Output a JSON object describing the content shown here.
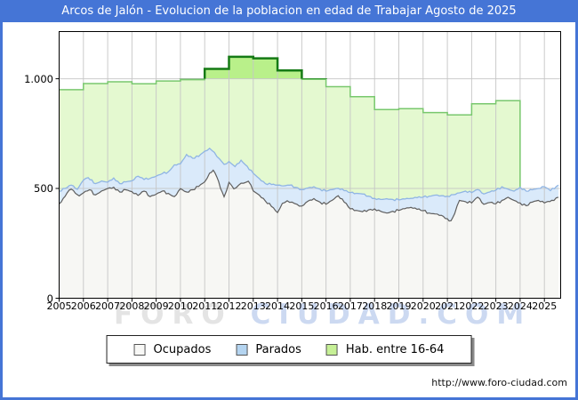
{
  "header": {
    "title": "Arcos de Jalón - Evolucion de la poblacion en edad de Trabajar Agosto de 2025"
  },
  "watermark": {
    "left": "FORO",
    "right": "CIUDAD.COM"
  },
  "footer": {
    "url": "http://www.foro-ciudad.com"
  },
  "legend": {
    "items": [
      {
        "label": "Ocupados",
        "swatch": "#f8f8f6"
      },
      {
        "label": "Parados",
        "swatch": "#b4d4f0"
      },
      {
        "label": "Hab. entre 16-64",
        "swatch": "#c6f096"
      }
    ]
  },
  "colors": {
    "header_bg": "#4575d6",
    "grid": "#c6c6c6",
    "plot_border": "#000000",
    "tick": "#000000",
    "ocupados_line": "#5e5e5e",
    "ocupados_fill": "#f7f7f4",
    "parados_line": "#90b5e4",
    "parados_fill": "#daeafa",
    "hab_line": "#79c86e",
    "hab_line_above_1000": "#157a15",
    "hab_fill": "#e4f9d0",
    "hab_fill_above_1000": "#b9f08a",
    "watermark_left": "#e4e4e4",
    "watermark_right": "#ccd9f1"
  },
  "chart_data": {
    "type": "area",
    "title": "Arcos de Jalón - Evolucion de la poblacion en edad de Trabajar Agosto de 2025",
    "xlabel": "",
    "ylabel": "",
    "xlim": [
      2005,
      2025.67
    ],
    "ylim": [
      0,
      1215
    ],
    "grid": true,
    "legend_position": "bottom-center",
    "x_tick_labels": [
      "2005",
      "2006",
      "2007",
      "2008",
      "2009",
      "2010",
      "2011",
      "2012",
      "2013",
      "2014",
      "2015",
      "2016",
      "2017",
      "2018",
      "2019",
      "2020",
      "2021",
      "2022",
      "2023",
      "2024",
      "2025"
    ],
    "y_ticks": [
      {
        "label": "0",
        "value": 0
      },
      {
        "label": "500",
        "value": 500
      },
      {
        "label": "1.000",
        "value": 1000
      }
    ],
    "threshold_highlight": 1000,
    "stacking_note": "Parados series top edge = Ocupados + Parados (stacked monthly data); Hab. entre 16-64 is yearly padron step data ending Jan 2024",
    "series": [
      {
        "name": "Hab. entre 16-64",
        "type": "step-year",
        "years": [
          2005,
          2006,
          2007,
          2008,
          2009,
          2010,
          2011,
          2012,
          2013,
          2014,
          2015,
          2016,
          2017,
          2018,
          2019,
          2020,
          2021,
          2022,
          2023
        ],
        "values": [
          950,
          978,
          986,
          977,
          990,
          996,
          1045,
          1100,
          1093,
          1038,
          997,
          964,
          918,
          860,
          864,
          846,
          835,
          886,
          900
        ],
        "end_x": 2024.0
      },
      {
        "name": "Parados",
        "type": "line-area",
        "points": [
          [
            2005.0,
            488
          ],
          [
            2005.25,
            500
          ],
          [
            2005.5,
            515
          ],
          [
            2005.75,
            496
          ],
          [
            2006.0,
            538
          ],
          [
            2006.2,
            549
          ],
          [
            2006.5,
            522
          ],
          [
            2006.75,
            534
          ],
          [
            2007.0,
            529
          ],
          [
            2007.25,
            548
          ],
          [
            2007.5,
            522
          ],
          [
            2007.75,
            530
          ],
          [
            2008.0,
            535
          ],
          [
            2008.25,
            556
          ],
          [
            2008.5,
            541
          ],
          [
            2008.75,
            546
          ],
          [
            2009.0,
            556
          ],
          [
            2009.25,
            568
          ],
          [
            2009.5,
            576
          ],
          [
            2009.75,
            608
          ],
          [
            2010.0,
            612
          ],
          [
            2010.25,
            655
          ],
          [
            2010.5,
            638
          ],
          [
            2010.75,
            646
          ],
          [
            2011.0,
            670
          ],
          [
            2011.2,
            683
          ],
          [
            2011.4,
            664
          ],
          [
            2011.6,
            636
          ],
          [
            2011.8,
            610
          ],
          [
            2012.0,
            623
          ],
          [
            2012.25,
            600
          ],
          [
            2012.5,
            629
          ],
          [
            2012.75,
            601
          ],
          [
            2013.0,
            569
          ],
          [
            2013.25,
            545
          ],
          [
            2013.5,
            522
          ],
          [
            2013.75,
            518
          ],
          [
            2014.0,
            515
          ],
          [
            2014.25,
            512
          ],
          [
            2014.5,
            515
          ],
          [
            2014.75,
            505
          ],
          [
            2015.0,
            495
          ],
          [
            2015.25,
            502
          ],
          [
            2015.5,
            508
          ],
          [
            2015.75,
            497
          ],
          [
            2016.0,
            488
          ],
          [
            2016.25,
            495
          ],
          [
            2016.5,
            501
          ],
          [
            2016.75,
            490
          ],
          [
            2017.0,
            481
          ],
          [
            2017.25,
            478
          ],
          [
            2017.5,
            475
          ],
          [
            2017.75,
            465
          ],
          [
            2018.0,
            455
          ],
          [
            2018.25,
            450
          ],
          [
            2018.5,
            453
          ],
          [
            2018.75,
            450
          ],
          [
            2019.0,
            448
          ],
          [
            2019.25,
            452
          ],
          [
            2019.5,
            455
          ],
          [
            2019.75,
            458
          ],
          [
            2020.0,
            461
          ],
          [
            2020.25,
            465
          ],
          [
            2020.5,
            470
          ],
          [
            2020.75,
            467
          ],
          [
            2021.0,
            465
          ],
          [
            2021.25,
            472
          ],
          [
            2021.5,
            480
          ],
          [
            2021.75,
            488
          ],
          [
            2022.0,
            481
          ],
          [
            2022.25,
            495
          ],
          [
            2022.5,
            475
          ],
          [
            2022.75,
            484
          ],
          [
            2023.0,
            492
          ],
          [
            2023.25,
            508
          ],
          [
            2023.5,
            497
          ],
          [
            2023.75,
            488
          ],
          [
            2024.0,
            506
          ],
          [
            2024.25,
            488
          ],
          [
            2024.5,
            494
          ],
          [
            2024.75,
            500
          ],
          [
            2025.0,
            508
          ],
          [
            2025.25,
            490
          ],
          [
            2025.58,
            515
          ]
        ]
      },
      {
        "name": "Ocupados",
        "type": "line-area",
        "points": [
          [
            2005.0,
            430
          ],
          [
            2005.17,
            455
          ],
          [
            2005.33,
            480
          ],
          [
            2005.5,
            497
          ],
          [
            2005.67,
            478
          ],
          [
            2005.83,
            466
          ],
          [
            2006.0,
            480
          ],
          [
            2006.25,
            494
          ],
          [
            2006.5,
            471
          ],
          [
            2006.75,
            489
          ],
          [
            2007.0,
            500
          ],
          [
            2007.25,
            506
          ],
          [
            2007.5,
            484
          ],
          [
            2007.75,
            494
          ],
          [
            2008.0,
            485
          ],
          [
            2008.25,
            468
          ],
          [
            2008.5,
            488
          ],
          [
            2008.75,
            463
          ],
          [
            2009.0,
            474
          ],
          [
            2009.25,
            488
          ],
          [
            2009.5,
            478
          ],
          [
            2009.75,
            463
          ],
          [
            2010.0,
            499
          ],
          [
            2010.25,
            484
          ],
          [
            2010.5,
            494
          ],
          [
            2010.75,
            509
          ],
          [
            2011.0,
            530
          ],
          [
            2011.2,
            570
          ],
          [
            2011.35,
            583
          ],
          [
            2011.5,
            552
          ],
          [
            2011.65,
            500
          ],
          [
            2011.8,
            462
          ],
          [
            2012.0,
            528
          ],
          [
            2012.2,
            498
          ],
          [
            2012.4,
            515
          ],
          [
            2012.6,
            524
          ],
          [
            2012.8,
            533
          ],
          [
            2013.0,
            489
          ],
          [
            2013.25,
            470
          ],
          [
            2013.5,
            443
          ],
          [
            2013.75,
            418
          ],
          [
            2014.0,
            390
          ],
          [
            2014.2,
            432
          ],
          [
            2014.4,
            444
          ],
          [
            2014.6,
            438
          ],
          [
            2014.8,
            428
          ],
          [
            2015.0,
            420
          ],
          [
            2015.25,
            442
          ],
          [
            2015.5,
            454
          ],
          [
            2015.75,
            438
          ],
          [
            2016.0,
            428
          ],
          [
            2016.25,
            446
          ],
          [
            2016.5,
            467
          ],
          [
            2016.75,
            438
          ],
          [
            2017.0,
            407
          ],
          [
            2017.25,
            400
          ],
          [
            2017.5,
            394
          ],
          [
            2017.75,
            402
          ],
          [
            2018.0,
            407
          ],
          [
            2018.25,
            396
          ],
          [
            2018.5,
            388
          ],
          [
            2018.75,
            396
          ],
          [
            2019.0,
            400
          ],
          [
            2019.25,
            408
          ],
          [
            2019.5,
            414
          ],
          [
            2019.75,
            405
          ],
          [
            2020.0,
            399
          ],
          [
            2020.25,
            388
          ],
          [
            2020.5,
            384
          ],
          [
            2020.75,
            378
          ],
          [
            2021.0,
            362
          ],
          [
            2021.15,
            353
          ],
          [
            2021.3,
            385
          ],
          [
            2021.5,
            446
          ],
          [
            2021.75,
            440
          ],
          [
            2022.0,
            434
          ],
          [
            2022.25,
            460
          ],
          [
            2022.5,
            428
          ],
          [
            2022.75,
            436
          ],
          [
            2023.0,
            430
          ],
          [
            2023.25,
            446
          ],
          [
            2023.5,
            460
          ],
          [
            2023.75,
            446
          ],
          [
            2024.0,
            434
          ],
          [
            2024.25,
            421
          ],
          [
            2024.5,
            438
          ],
          [
            2024.75,
            446
          ],
          [
            2025.0,
            434
          ],
          [
            2025.3,
            446
          ],
          [
            2025.58,
            460
          ]
        ]
      }
    ]
  }
}
